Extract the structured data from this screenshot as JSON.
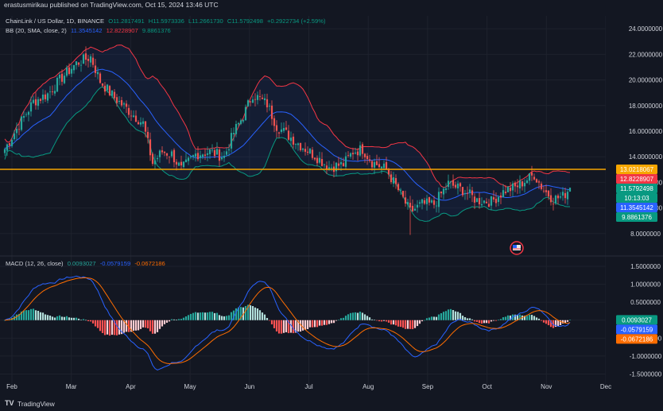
{
  "header": {
    "published": "erastusmirikau published on TradingView.com, Oct 15, 2024 13:46 UTC"
  },
  "legend": {
    "symbol": "ChainLink / US Dollar, 1D, BINANCE",
    "o": "O11.2817491",
    "h": "H11.5973336",
    "l": "L11.2661730",
    "c": "C11.5792498",
    "chg": "+0.2922734 (+2.59%)",
    "bb_name": "BB (20, SMA, close, 2)",
    "bb_mid": "11.3545142",
    "bb_up": "12.8228907",
    "bb_low": "9.8861376",
    "macd_name": "MACD (12, 26, close)",
    "macd_hist": "0.0093027",
    "macd_line": "-0.0579159",
    "macd_signal": "-0.0672186"
  },
  "footer": {
    "brand": "TradingView"
  },
  "colors": {
    "up": "#26a69a",
    "down": "#ef5350",
    "bb_mid": "#2962ff",
    "bb_upper": "#f23645",
    "bb_lower": "#089981",
    "hline": "#f7a600",
    "macd": "#2962ff",
    "signal": "#ff6d00"
  },
  "chart_data": {
    "type": "candlestick",
    "price_axis": {
      "ticks": [
        8,
        10,
        12,
        14,
        16,
        18,
        20,
        22,
        24
      ],
      "tick_labels": [
        "8.0000000",
        "10.0000000",
        "12.0000000",
        "14.0000000",
        "16.0000000",
        "18.0000000",
        "20.0000000",
        "22.0000000",
        "24.0000000"
      ],
      "range": [
        6.5,
        25
      ]
    },
    "macd_axis": {
      "ticks": [
        -1.5,
        -1,
        -0.5,
        0,
        0.5,
        1,
        1.5
      ],
      "tick_labels": [
        "-1.5000000",
        "-1.0000000",
        "-0.5000000",
        "0",
        "0.5000000",
        "1.0000000",
        "1.5000000"
      ],
      "range": [
        -1.8,
        1.7
      ]
    },
    "x_axis": {
      "months": [
        "Feb",
        "Mar",
        "Apr",
        "May",
        "Jun",
        "Jul",
        "Aug",
        "Sep",
        "Oct",
        "Nov",
        "Dec"
      ]
    },
    "horizontal_line": 13.0218067,
    "price_badges": [
      {
        "text": "13.0218067",
        "value": 13.0218067,
        "color": "#f7a600"
      },
      {
        "text": "12.8228907",
        "value": 12.8228907,
        "color": "#f23645"
      },
      {
        "text": "11.5792498",
        "value": 11.5792498,
        "color": "#089981"
      },
      {
        "text": "10:13:03",
        "value": 11.08,
        "color": "#089981"
      },
      {
        "text": "11.3545142",
        "value": 11.3545142,
        "color": "#2962ff"
      },
      {
        "text": "9.8861376",
        "value": 9.8861376,
        "color": "#089981"
      }
    ],
    "macd_badges": [
      {
        "text": "0.0093027",
        "value": 0.0093027,
        "color": "#089981"
      },
      {
        "text": "-0.0579159",
        "value": -0.0579159,
        "color": "#2962ff"
      },
      {
        "text": "-0.0672186",
        "value": -0.0672186,
        "color": "#ff6d00"
      }
    ],
    "close_anchors": [
      [
        0,
        14.6
      ],
      [
        6,
        16.5
      ],
      [
        12,
        18.3
      ],
      [
        18,
        18.9
      ],
      [
        24,
        20.2
      ],
      [
        30,
        21.3
      ],
      [
        36,
        21.8
      ],
      [
        40,
        19.9
      ],
      [
        46,
        18.6
      ],
      [
        52,
        17.6
      ],
      [
        58,
        16.6
      ],
      [
        62,
        13.5
      ],
      [
        66,
        14.4
      ],
      [
        70,
        14.2
      ],
      [
        74,
        13.0
      ],
      [
        80,
        14.2
      ],
      [
        86,
        14.4
      ],
      [
        92,
        14.0
      ],
      [
        96,
        15.9
      ],
      [
        100,
        17.2
      ],
      [
        104,
        18.9
      ],
      [
        110,
        18.1
      ],
      [
        114,
        16.4
      ],
      [
        118,
        15.8
      ],
      [
        124,
        14.9
      ],
      [
        130,
        14.1
      ],
      [
        136,
        13.2
      ],
      [
        142,
        13.4
      ],
      [
        146,
        14.4
      ],
      [
        150,
        14.6
      ],
      [
        154,
        13.6
      ],
      [
        160,
        13.0
      ],
      [
        165,
        11.4
      ],
      [
        170,
        9.7
      ],
      [
        175,
        10.3
      ],
      [
        180,
        10.3
      ],
      [
        186,
        11.9
      ],
      [
        192,
        11.4
      ],
      [
        198,
        10.6
      ],
      [
        204,
        10.5
      ],
      [
        210,
        11.4
      ],
      [
        214,
        11.6
      ],
      [
        218,
        12.1
      ],
      [
        222,
        12.6
      ],
      [
        226,
        11.4
      ],
      [
        230,
        10.7
      ],
      [
        234,
        10.9
      ],
      [
        237,
        11.58
      ]
    ]
  }
}
